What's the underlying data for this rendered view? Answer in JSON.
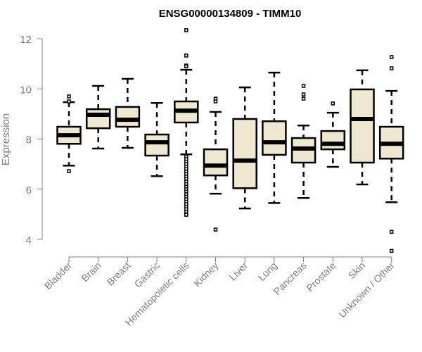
{
  "chart_data": {
    "type": "boxplot",
    "title": "ENSG00000134809 - TIMM10",
    "xlabel": "",
    "ylabel": "Expression",
    "ylim": [
      4,
      12
    ],
    "yticks": [
      4,
      6,
      8,
      10,
      12
    ],
    "grid": false,
    "box_color": "#ede8cf",
    "categories": [
      "Bladder",
      "Brain",
      "Breast",
      "Gastric",
      "Hematopoietic cells",
      "Kidney",
      "Liver",
      "Lung",
      "Pancreas",
      "Prostate",
      "Skin",
      "Unknown / Other"
    ],
    "boxes": [
      {
        "low": 6.94,
        "q1": 7.81,
        "median": 8.15,
        "q3": 8.49,
        "high": 9.47,
        "outliers": [
          9.7,
          9.5,
          6.72
        ]
      },
      {
        "low": 7.62,
        "q1": 8.43,
        "median": 8.97,
        "q3": 9.19,
        "high": 10.12,
        "outliers": []
      },
      {
        "low": 7.65,
        "q1": 8.49,
        "median": 8.77,
        "q3": 9.28,
        "high": 10.4,
        "outliers": []
      },
      {
        "low": 6.52,
        "q1": 7.34,
        "median": 7.87,
        "q3": 8.18,
        "high": 9.44,
        "outliers": []
      },
      {
        "low": 7.39,
        "q1": 8.66,
        "median": 9.13,
        "q3": 9.5,
        "high": 10.76,
        "outliers": [
          12.34,
          11.33,
          10.93,
          10.9,
          7.3,
          7.2,
          7.1,
          7.0,
          6.9,
          6.8,
          6.7,
          6.6,
          6.5,
          6.4,
          6.3,
          6.2,
          6.1,
          6.0,
          5.9,
          5.8,
          5.7,
          5.6,
          5.5,
          5.4,
          5.3,
          5.2,
          5.1,
          5.0,
          4.98
        ]
      },
      {
        "low": 5.82,
        "q1": 6.55,
        "median": 6.94,
        "q3": 7.59,
        "high": 9.08,
        "outliers": [
          9.61,
          9.5,
          4.39
        ]
      },
      {
        "low": 5.23,
        "q1": 6.04,
        "median": 7.14,
        "q3": 8.8,
        "high": 10.06,
        "outliers": []
      },
      {
        "low": 5.45,
        "q1": 7.37,
        "median": 7.87,
        "q3": 8.71,
        "high": 10.65,
        "outliers": []
      },
      {
        "low": 5.65,
        "q1": 7.06,
        "median": 7.62,
        "q3": 8.04,
        "high": 8.54,
        "outliers": [
          10.12,
          9.78,
          9.61
        ]
      },
      {
        "low": 6.89,
        "q1": 7.59,
        "median": 7.81,
        "q3": 8.32,
        "high": 9.05,
        "outliers": [
          9.42
        ]
      },
      {
        "low": 6.19,
        "q1": 7.06,
        "median": 8.8,
        "q3": 9.98,
        "high": 10.74,
        "outliers": []
      },
      {
        "low": 5.48,
        "q1": 7.22,
        "median": 7.81,
        "q3": 8.49,
        "high": 9.92,
        "outliers": [
          11.27,
          10.82,
          4.3,
          3.54
        ]
      }
    ]
  }
}
